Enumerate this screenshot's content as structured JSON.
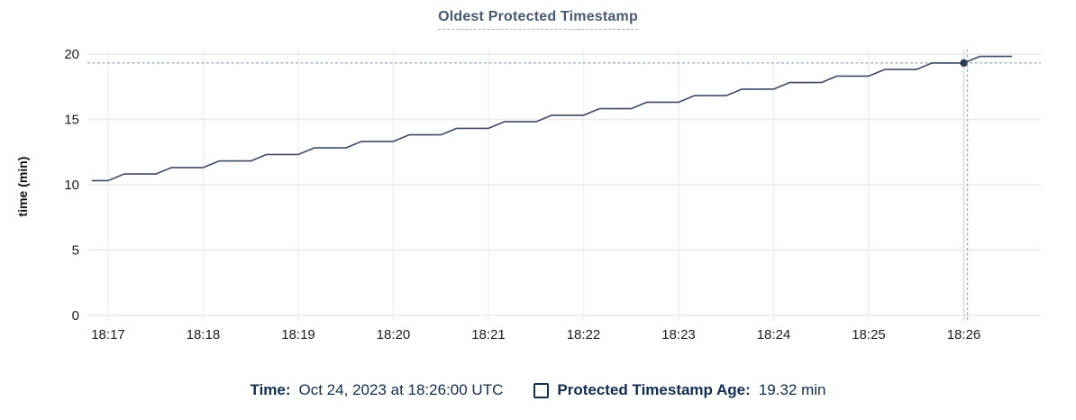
{
  "title": "Oldest Protected Timestamp",
  "legend": {
    "time_label": "Time:",
    "time_value": "Oct 24, 2023 at 18:26:00 UTC",
    "series_label": "Protected Timestamp Age:",
    "series_value": "19.32 min"
  },
  "colors": {
    "title": "#475872",
    "title_underline": "#9daec5",
    "line": "#3c4b66",
    "dot": "#2c3a52",
    "crosshair": "#9fb2c6",
    "grid_h": "#ebebeb",
    "grid_v": "#f3f3f3",
    "grid_hover": "#e0e0e0",
    "tick_text": "#1c1c1c",
    "axis_label_text": "#111111",
    "legend_text": "#112d51"
  },
  "chart_data": {
    "type": "line",
    "title": "Oldest Protected Timestamp",
    "xlabel": "",
    "ylabel": "time (min)",
    "ylim": [
      0,
      20
    ],
    "y_ticks": [
      0,
      5,
      10,
      15,
      20
    ],
    "x_ticks": [
      "18:17",
      "18:18",
      "18:19",
      "18:20",
      "18:21",
      "18:22",
      "18:23",
      "18:24",
      "18:25",
      "18:26"
    ],
    "grid": true,
    "legend_position": "bottom",
    "series": [
      {
        "name": "Protected Timestamp Age",
        "unit": "min",
        "x": [
          "18:16:50",
          "18:17:00",
          "18:17:10",
          "18:17:20",
          "18:17:30",
          "18:17:40",
          "18:17:50",
          "18:18:00",
          "18:18:10",
          "18:18:20",
          "18:18:30",
          "18:18:40",
          "18:18:50",
          "18:19:00",
          "18:19:10",
          "18:19:20",
          "18:19:30",
          "18:19:40",
          "18:19:50",
          "18:20:00",
          "18:20:10",
          "18:20:20",
          "18:20:30",
          "18:20:40",
          "18:20:50",
          "18:21:00",
          "18:21:10",
          "18:21:20",
          "18:21:30",
          "18:21:40",
          "18:21:50",
          "18:22:00",
          "18:22:10",
          "18:22:20",
          "18:22:30",
          "18:22:40",
          "18:22:50",
          "18:23:00",
          "18:23:10",
          "18:23:20",
          "18:23:30",
          "18:23:40",
          "18:23:50",
          "18:24:00",
          "18:24:10",
          "18:24:20",
          "18:24:30",
          "18:24:40",
          "18:24:50",
          "18:25:00",
          "18:25:10",
          "18:25:20",
          "18:25:30",
          "18:25:40",
          "18:25:50",
          "18:26:00",
          "18:26:10",
          "18:26:20",
          "18:26:30"
        ],
        "y": [
          10.32,
          10.32,
          10.82,
          10.82,
          10.82,
          11.32,
          11.32,
          11.32,
          11.82,
          11.82,
          11.82,
          12.32,
          12.32,
          12.32,
          12.82,
          12.82,
          12.82,
          13.32,
          13.32,
          13.32,
          13.82,
          13.82,
          13.82,
          14.32,
          14.32,
          14.32,
          14.82,
          14.82,
          14.82,
          15.32,
          15.32,
          15.32,
          15.82,
          15.82,
          15.82,
          16.32,
          16.32,
          16.32,
          16.82,
          16.82,
          16.82,
          17.32,
          17.32,
          17.32,
          17.82,
          17.82,
          17.82,
          18.32,
          18.32,
          18.32,
          18.82,
          18.82,
          18.82,
          19.32,
          19.32,
          19.32,
          19.82,
          19.82,
          19.82
        ]
      }
    ],
    "hover_point": {
      "date": "Oct 24, 2023",
      "time": "18:26:00",
      "value": 19.32,
      "x_tick": "18:26"
    }
  }
}
